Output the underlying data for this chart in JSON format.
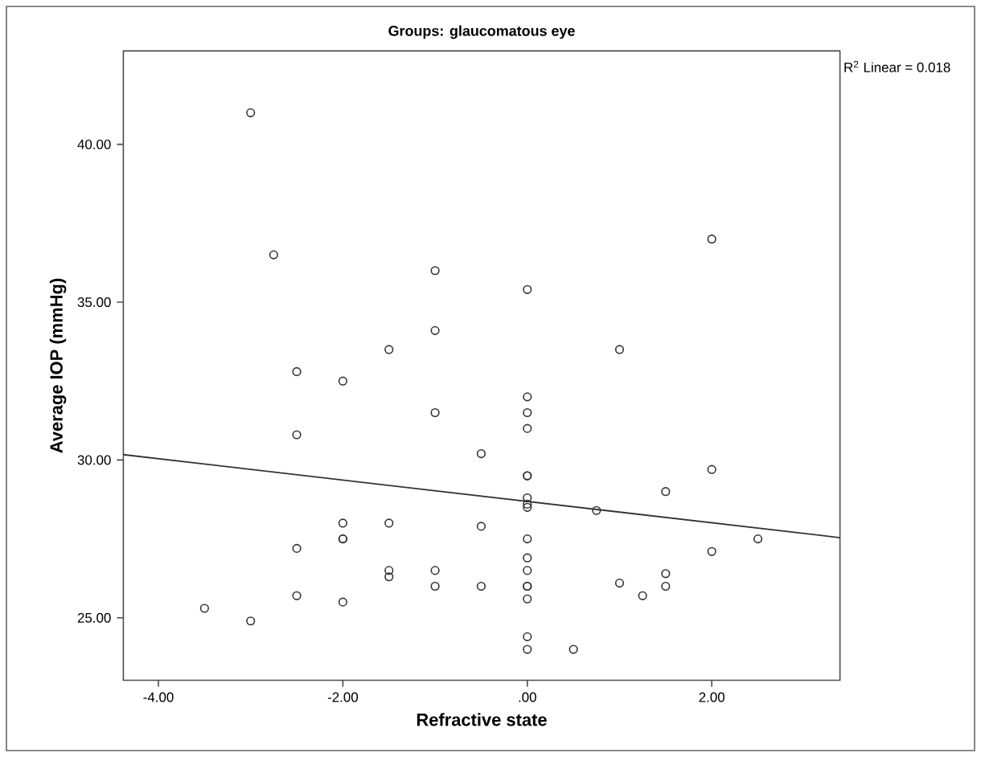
{
  "chart_data": {
    "type": "scatter",
    "title": "Groups: glaucomatous eye",
    "xlabel": "Refractive state",
    "ylabel": "Average IOP (mmHg)",
    "annotations": [
      "R$^{2}$ Linear = 0.018"
    ],
    "xlim": [
      -4.38,
      3.39
    ],
    "ylim": [
      23.02,
      42.96
    ],
    "xticks": [
      {
        "value": -4,
        "label": "-4.00"
      },
      {
        "value": -2,
        "label": "-2.00"
      },
      {
        "value": 0,
        "label": ".00"
      },
      {
        "value": 2,
        "label": "2.00"
      }
    ],
    "yticks": [
      {
        "value": 25,
        "label": "25.00"
      },
      {
        "value": 30,
        "label": "30.00"
      },
      {
        "value": 35,
        "label": "35.00"
      },
      {
        "value": 40,
        "label": "40.00"
      }
    ],
    "grid": false,
    "marker": "circle",
    "series": [
      {
        "color": "#333333",
        "x": [
          -3.0,
          -2.75,
          -1.0,
          0,
          -1.0,
          -1.5,
          -2.5,
          -2.0,
          2.0,
          1.0,
          0,
          0,
          0,
          -1.0,
          -2.5,
          -0.5,
          0,
          0,
          0,
          0,
          0,
          -2.0,
          -1.5,
          -0.5,
          -2.0,
          -2.0,
          0,
          -2.5,
          0,
          -1.5,
          -1.5,
          -1.0,
          0,
          -1.0,
          -0.5,
          0,
          0,
          0,
          -2.5,
          -2.0,
          -3.5,
          -3.0,
          0,
          0,
          2.0,
          1.5,
          0.75,
          2.5,
          2.0,
          1.5,
          1.5,
          1.0,
          1.25,
          0.5
        ],
        "values": [
          41.0,
          36.5,
          36.0,
          35.4,
          34.1,
          33.5,
          32.8,
          32.5,
          37.0,
          33.5,
          32.0,
          31.5,
          31.0,
          31.5,
          30.8,
          30.2,
          29.5,
          29.5,
          28.8,
          28.6,
          28.5,
          28.0,
          28.0,
          27.9,
          27.5,
          27.5,
          27.5,
          27.2,
          26.9,
          26.5,
          26.3,
          26.5,
          26.5,
          26.0,
          26.0,
          26.0,
          26.0,
          25.6,
          25.7,
          25.5,
          25.3,
          24.9,
          24.4,
          24.0,
          29.7,
          29.0,
          28.4,
          27.5,
          27.1,
          26.4,
          26.0,
          26.1,
          25.7,
          24.0
        ]
      },
      {
        "type": "line",
        "color": "#333333",
        "marker": "none",
        "x": [
          -4.38,
          3.39
        ],
        "values": [
          30.17,
          27.54
        ]
      }
    ]
  }
}
